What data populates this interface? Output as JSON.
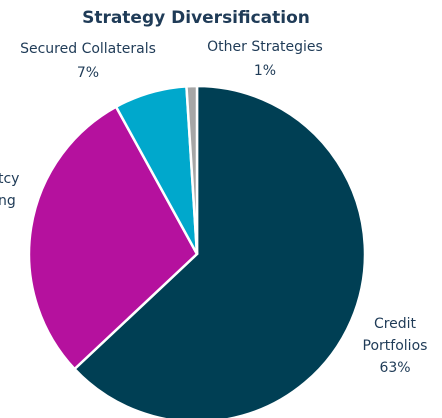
{
  "chart_data": {
    "type": "pie",
    "title": "Strategy Diversification",
    "categories": [
      "Credit Portfolios",
      "tcy ng",
      "Secured Collaterals",
      "Other Strategies"
    ],
    "values": [
      63,
      29,
      7,
      1
    ],
    "value_labels": [
      "63%",
      null,
      "7%",
      "1%"
    ],
    "colors": [
      "#003f54",
      "#b5119e",
      "#00a8cc",
      "#a6a6a6"
    ]
  }
}
